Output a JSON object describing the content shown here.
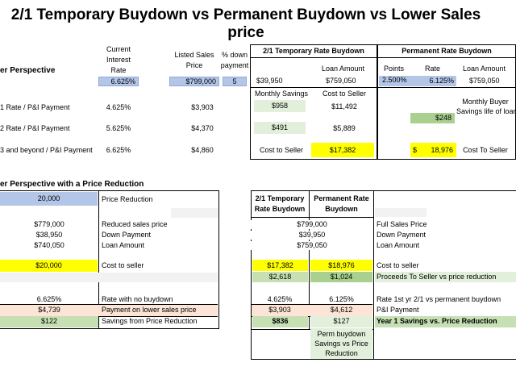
{
  "title": "2/1 Temporary Buydown vs Permanent Buydown vs Lower Sales price",
  "top": {
    "section_label": "er Perspective",
    "col_current_rate": [
      "Current",
      "Interest",
      "Rate"
    ],
    "col_listed_price": [
      "Listed Sales",
      "Price"
    ],
    "col_down_payment": [
      "% down",
      "payment"
    ],
    "current_rate": "6.625%",
    "listed_price": "$799,000",
    "down_pct": "5",
    "rows": [
      {
        "label": "1 Rate / P&I Payment",
        "rate": "4.625%",
        "payment": "$3,903"
      },
      {
        "label": "2 Rate /  P&I Payment",
        "rate": "5.625%",
        "payment": "$4,370"
      },
      {
        "label": "3 and beyond / P&I Payment",
        "rate": "6.625%",
        "payment": "$4,860"
      }
    ],
    "temp": {
      "header": "2/1 Temporary Rate Buydown",
      "loan_amount_label": "Loan Amount",
      "down": "$39,950",
      "loan": "$759,050",
      "monthly_savings_label": "Monthly Savings",
      "cost_to_seller_label": "Cost to Seller",
      "savings_1": "$958",
      "cost_1": "$11,492",
      "savings_2": "$491",
      "cost_2": "$5,889",
      "cost_to_seller_label2": "Cost to Seller",
      "total_cost": "$17,382"
    },
    "perm": {
      "header": "Permanent Rate Buydown",
      "points_label": "Points",
      "rate_label": "Rate",
      "loan_amount_label": "Loan Amount",
      "points": "2.500%",
      "rate": "6.125%",
      "loan": "$759,050",
      "monthly_buyer_label": [
        "Monthly Buyer",
        "Savings life of loan"
      ],
      "monthly_savings": "$248",
      "cost_currency": "$",
      "cost": "18,976",
      "cost_to_seller_label": "Cost To Seller"
    }
  },
  "bottom": {
    "section_label": "er Perspective with a Price Reduction",
    "left": {
      "price_reduction": "20,000",
      "price_reduction_label": "Price Reduction",
      "reduced_price": "$779,000",
      "reduced_price_label": "Reduced sales price",
      "down_payment": "$38,950",
      "down_payment_label": "Down Payment",
      "loan_amount": "$740,050",
      "loan_amount_label": "Loan Amount",
      "cost_to_seller": "$20,000",
      "cost_to_seller_label": "Cost to seller",
      "rate_no_buydown": "6.625%",
      "rate_no_buydown_label": "Rate with no buydown",
      "payment_lower": "$4,739",
      "payment_lower_label": "Payment on lower sales price",
      "savings": "$122",
      "savings_label": "Savings from Price Reduction"
    },
    "right": {
      "col1_header": [
        "2/1 Temporary",
        "Rate Buydown"
      ],
      "col2_header": [
        "Permanent Rate",
        "Buydown"
      ],
      "full_price": "$799,000",
      "full_price_label": "Full Sales Price",
      "down": "$39,950",
      "down_label": "Down Payment",
      "loan": "$759,050",
      "loan_label": "Loan Amount",
      "cost_temp": "$17,382",
      "cost_perm": "$18,976",
      "cost_label": "Cost to seller",
      "proceeds_temp": "$2,618",
      "proceeds_perm": "$1,024",
      "proceeds_label": "Proceeds To Seller vs price reduction",
      "rate_temp": "4.625%",
      "rate_perm": "6.125%",
      "rate_label": "Rate 1st yr 2/1 vs permanent buydown",
      "pi_temp": "$3,903",
      "pi_perm": "$4,612",
      "pi_label": "P&I Payment",
      "y1_temp": "$836",
      "y1_perm": "$127",
      "y1_label": "Year 1 Savings vs. Price Reduction",
      "perm_note": [
        "Perm buydown",
        "Savings vs Price",
        "Reduction"
      ]
    }
  }
}
